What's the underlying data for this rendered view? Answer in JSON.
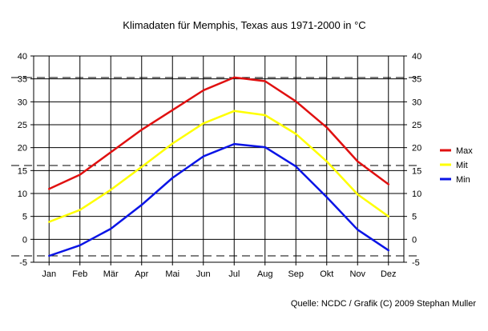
{
  "chart_data": {
    "type": "line",
    "title": "Klimadaten für Memphis, Texas aus 1971-2000 in °C",
    "source": "Quelle: NCDC / Grafik (C) 2009 Stephan Muller",
    "categories": [
      "Jan",
      "Feb",
      "Mär",
      "Apr",
      "Mai",
      "Jun",
      "Jul",
      "Aug",
      "Sep",
      "Okt",
      "Nov",
      "Dez"
    ],
    "ylim": [
      -5,
      40
    ],
    "yticks": [
      40,
      35,
      30,
      25,
      20,
      15,
      10,
      5,
      0,
      -5
    ],
    "grid": true,
    "legend_position": "right",
    "reference_lines": [
      35.3,
      16.1,
      -3.6
    ],
    "series": [
      {
        "name": "Max",
        "color": "#e01010",
        "values": [
          11.0,
          14.1,
          19.0,
          23.9,
          28.2,
          32.5,
          35.3,
          34.5,
          30.1,
          24.4,
          17.0,
          12.0
        ]
      },
      {
        "name": "Mit",
        "color": "#ffff00",
        "values": [
          3.8,
          6.4,
          10.8,
          15.8,
          20.9,
          25.3,
          28.0,
          27.1,
          23.0,
          17.0,
          9.8,
          5.0
        ]
      },
      {
        "name": "Min",
        "color": "#0a14e6",
        "values": [
          -3.6,
          -1.3,
          2.3,
          7.5,
          13.4,
          18.1,
          20.8,
          20.1,
          15.9,
          9.2,
          2.1,
          -2.4
        ]
      }
    ]
  }
}
